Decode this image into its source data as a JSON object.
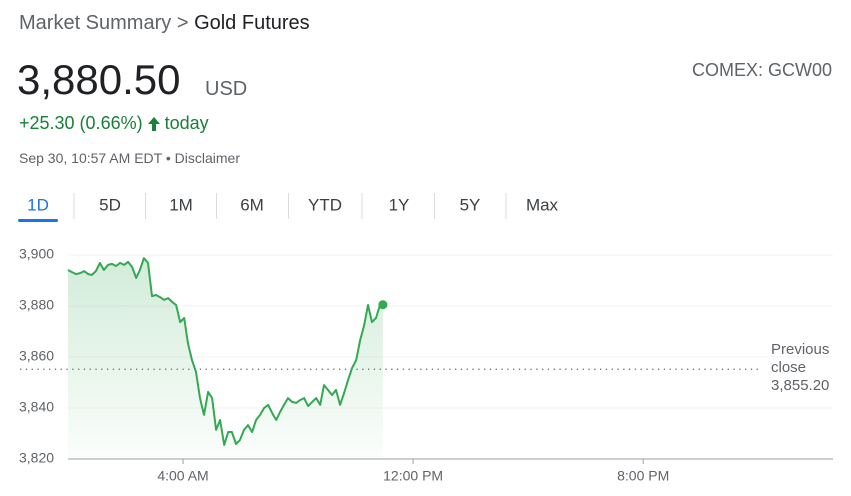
{
  "header": {
    "breadcrumb": [
      "Market Summary",
      ">",
      "Gold Futures"
    ],
    "price": "3,880.50",
    "currency": "USD",
    "exchange": "COMEX: GCW00",
    "change": "+25.30 (0.66%)",
    "change_period": "today",
    "timestamp": "Sep 30, 10:57 AM EDT",
    "separator": "•",
    "disclaimer": "Disclaimer"
  },
  "tabs": [
    "1D",
    "5D",
    "1M",
    "6M",
    "YTD",
    "1Y",
    "5Y",
    "Max"
  ],
  "selected_tab": "1D",
  "chart_data": {
    "type": "line",
    "color": "#34a853",
    "grid": true,
    "x": [
      0,
      0.14,
      0.28,
      0.42,
      0.56,
      0.7,
      0.83,
      0.97,
      1.11,
      1.25,
      1.39,
      1.53,
      1.67,
      1.81,
      1.95,
      2.09,
      2.23,
      2.37,
      2.5,
      2.64,
      2.78,
      2.92,
      3.06,
      3.2,
      3.34,
      3.48,
      3.62,
      3.76,
      3.9,
      4.04,
      4.17,
      4.31,
      4.45,
      4.59,
      4.73,
      4.87,
      5.01,
      5.15,
      5.29,
      5.43,
      5.57,
      5.7,
      5.84,
      5.98,
      6.12,
      6.26,
      6.4,
      6.54,
      6.68,
      6.82,
      6.96,
      7.1,
      7.24,
      7.37,
      7.51,
      7.65,
      7.79,
      7.93,
      8.07,
      8.21,
      8.35,
      8.49,
      8.63,
      8.77,
      8.9,
      9.04,
      9.18,
      9.32,
      9.46,
      9.6,
      9.74,
      9.88,
      10.02,
      10.16,
      10.3,
      10.43,
      10.57,
      10.71,
      10.85,
      10.95
    ],
    "values": [
      3894.1,
      3893.3,
      3892.5,
      3892.9,
      3893.7,
      3892.5,
      3892.2,
      3893.7,
      3896.9,
      3894.1,
      3896.1,
      3896.5,
      3895.7,
      3896.9,
      3896.1,
      3897.3,
      3895.3,
      3891.0,
      3894.1,
      3898.8,
      3896.9,
      3883.9,
      3884.3,
      3883.5,
      3882.4,
      3883.1,
      3881.6,
      3880.4,
      3873.7,
      3875.3,
      3865.5,
      3858.8,
      3854.1,
      3843.9,
      3837.3,
      3846.3,
      3843.9,
      3831.4,
      3835.3,
      3825.5,
      3830.6,
      3830.6,
      3825.9,
      3827.5,
      3831.4,
      3833.3,
      3830.6,
      3835.3,
      3837.3,
      3840.0,
      3841.2,
      3838.0,
      3835.3,
      3838.4,
      3841.2,
      3843.9,
      3842.4,
      3842.0,
      3843.1,
      3843.9,
      3840.8,
      3842.4,
      3843.9,
      3841.2,
      3849.0,
      3847.1,
      3845.1,
      3847.1,
      3841.2,
      3845.9,
      3851.0,
      3855.7,
      3858.8,
      3866.7,
      3872.5,
      3880.4,
      3873.7,
      3875.3,
      3880.4,
      3880.5
    ],
    "xlim": [
      0,
      26.6
    ],
    "xticks": [
      {
        "value": 4,
        "label": "4:00 AM"
      },
      {
        "value": 12,
        "label": "12:00 PM"
      },
      {
        "value": 20,
        "label": "8:00 PM"
      }
    ],
    "ylim": [
      3820,
      3900
    ],
    "yticks": [
      {
        "value": 3820,
        "label": "3,820"
      },
      {
        "value": 3840,
        "label": "3,840"
      },
      {
        "value": 3860,
        "label": "3,860"
      },
      {
        "value": 3880,
        "label": "3,880"
      },
      {
        "value": 3900,
        "label": "3,900"
      }
    ],
    "reference_line": {
      "label": "Previous close",
      "value": 3855.2,
      "value_label": "3,855.20"
    }
  }
}
